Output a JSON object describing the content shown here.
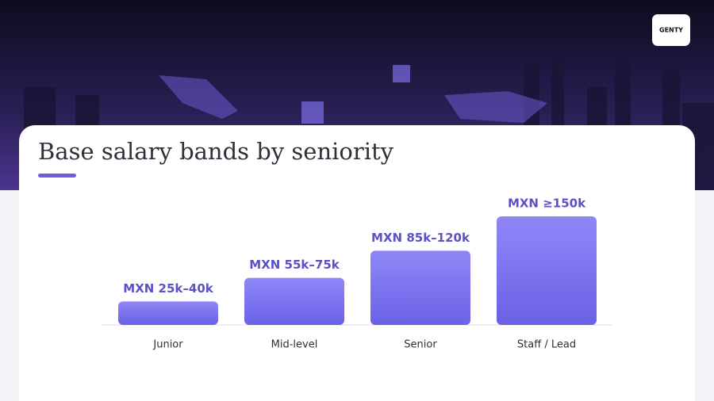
{
  "logo": "GENTY",
  "chart_data": {
    "type": "bar",
    "title": "Base salary bands by seniority",
    "categories": [
      "Junior",
      "Mid-level",
      "Senior",
      "Staff / Lead"
    ],
    "values": [
      32.5,
      65,
      102.5,
      150
    ],
    "value_labels": [
      "MXN 25k–40k",
      "MXN 55k–75k",
      "MXN 85k–120k",
      "MXN ≥150k"
    ],
    "color": "#7a71ee"
  }
}
